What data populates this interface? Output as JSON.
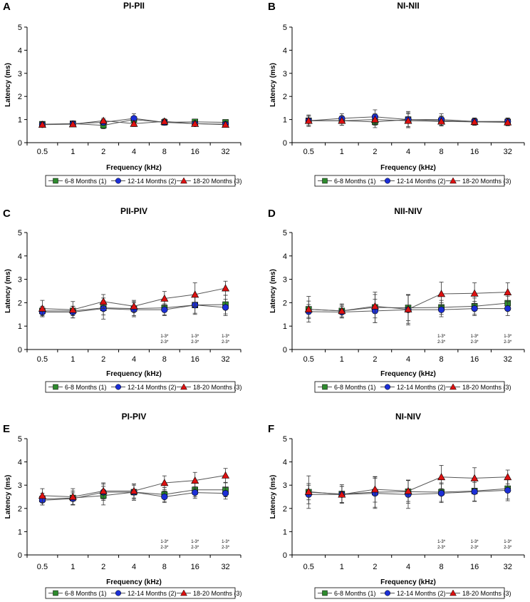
{
  "figure": {
    "legend_labels": [
      "6-8 Months (1)",
      "12-14 Months (2)",
      "18-20 Months (3)"
    ],
    "colors": {
      "group1": "#2e8b2e",
      "group2": "#1c2fd6",
      "group3": "#dd1111",
      "axis": "#000000",
      "line": "#555555"
    }
  },
  "chart_data": [
    {
      "type": "line",
      "panel_letter": "A",
      "title": "PI-PII",
      "xlabel": "Frequency (kHz)",
      "ylabel": "Latency (ms)",
      "categories": [
        "0.5",
        "1",
        "2",
        "4",
        "8",
        "16",
        "32"
      ],
      "ylim": [
        0,
        5
      ],
      "yticks": [
        "0",
        "1",
        "2",
        "3",
        "4",
        "5"
      ],
      "series": [
        {
          "name": "6-8 Months (1)",
          "values": [
            0.8,
            0.82,
            0.75,
            1.0,
            0.88,
            0.9,
            0.88
          ],
          "errors": [
            0.08,
            0.1,
            0.15,
            0.12,
            0.1,
            0.08,
            0.08
          ]
        },
        {
          "name": "12-14 Months (2)",
          "values": [
            0.78,
            0.82,
            0.88,
            1.05,
            0.88,
            0.82,
            0.8
          ],
          "errors": [
            0.08,
            0.1,
            0.12,
            0.2,
            0.1,
            0.08,
            0.08
          ]
        },
        {
          "name": "18-20 Months (3)",
          "values": [
            0.78,
            0.8,
            0.95,
            0.82,
            0.92,
            0.82,
            0.78
          ],
          "errors": [
            0.08,
            0.1,
            0.1,
            0.12,
            0.12,
            0.1,
            0.1
          ]
        }
      ],
      "annotations": []
    },
    {
      "type": "line",
      "panel_letter": "B",
      "title": "NI-NII",
      "xlabel": "Frequency (kHz)",
      "ylabel": "Latency (ms)",
      "categories": [
        "0.5",
        "1",
        "2",
        "4",
        "8",
        "16",
        "32"
      ],
      "ylim": [
        0,
        5
      ],
      "yticks": [
        "0",
        "1",
        "2",
        "3",
        "4",
        "5"
      ],
      "series": [
        {
          "name": "6-8 Months (1)",
          "values": [
            0.95,
            0.95,
            0.9,
            1.0,
            0.95,
            0.9,
            0.9
          ],
          "errors": [
            0.25,
            0.2,
            0.25,
            0.3,
            0.2,
            0.15,
            0.15
          ]
        },
        {
          "name": "12-14 Months (2)",
          "values": [
            0.95,
            1.05,
            1.12,
            1.0,
            1.0,
            0.92,
            0.92
          ],
          "errors": [
            0.2,
            0.2,
            0.3,
            0.35,
            0.25,
            0.15,
            0.15
          ]
        },
        {
          "name": "18-20 Months (3)",
          "values": [
            0.95,
            0.95,
            1.0,
            0.95,
            0.92,
            0.9,
            0.88
          ],
          "errors": [
            0.2,
            0.2,
            0.25,
            0.3,
            0.2,
            0.15,
            0.15
          ]
        }
      ],
      "annotations": []
    },
    {
      "type": "line",
      "panel_letter": "C",
      "title": "PII-PIV",
      "xlabel": "Frequency (kHz)",
      "ylabel": "Latency (ms)",
      "categories": [
        "0.5",
        "1",
        "2",
        "4",
        "8",
        "16",
        "32"
      ],
      "ylim": [
        0,
        5
      ],
      "yticks": [
        "0",
        "1",
        "2",
        "3",
        "4",
        "5"
      ],
      "series": [
        {
          "name": "6-8 Months (1)",
          "values": [
            1.65,
            1.65,
            1.78,
            1.75,
            1.78,
            1.9,
            1.92
          ],
          "errors": [
            0.2,
            0.2,
            0.3,
            0.3,
            0.3,
            0.35,
            0.4
          ]
        },
        {
          "name": "12-14 Months (2)",
          "values": [
            1.6,
            1.6,
            1.75,
            1.7,
            1.7,
            1.9,
            1.8
          ],
          "errors": [
            0.2,
            0.25,
            0.45,
            0.3,
            0.25,
            0.4,
            0.35
          ]
        },
        {
          "name": "18-20 Months (3)",
          "values": [
            1.75,
            1.7,
            2.05,
            1.85,
            2.18,
            2.35,
            2.62
          ],
          "errors": [
            0.35,
            0.35,
            0.3,
            0.25,
            0.3,
            0.5,
            0.3
          ]
        }
      ],
      "annotations": [
        {
          "category": "8",
          "lines": [
            "1-3*",
            "2-3*"
          ]
        },
        {
          "category": "16",
          "lines": [
            "1-3*",
            "2-3*"
          ]
        },
        {
          "category": "32",
          "lines": [
            "1-3*",
            "2-3*"
          ]
        }
      ]
    },
    {
      "type": "line",
      "panel_letter": "D",
      "title": "NII-NIV",
      "xlabel": "Frequency (kHz)",
      "ylabel": "Latency (ms)",
      "categories": [
        "0.5",
        "1",
        "2",
        "4",
        "8",
        "16",
        "32"
      ],
      "ylim": [
        0,
        5
      ],
      "yticks": [
        "0",
        "1",
        "2",
        "3",
        "4",
        "5"
      ],
      "series": [
        {
          "name": "6-8 Months (1)",
          "values": [
            1.72,
            1.65,
            1.8,
            1.78,
            1.8,
            1.85,
            1.98
          ],
          "errors": [
            0.55,
            0.25,
            0.65,
            0.55,
            0.3,
            0.35,
            0.3
          ]
        },
        {
          "name": "12-14 Months (2)",
          "values": [
            1.62,
            1.6,
            1.65,
            1.7,
            1.7,
            1.75,
            1.75
          ],
          "errors": [
            0.3,
            0.25,
            0.5,
            0.65,
            0.3,
            0.3,
            0.3
          ]
        },
        {
          "name": "18-20 Months (3)",
          "values": [
            1.72,
            1.65,
            1.85,
            1.72,
            2.38,
            2.4,
            2.45
          ],
          "errors": [
            0.35,
            0.3,
            0.5,
            0.6,
            0.5,
            0.45,
            0.4
          ]
        }
      ],
      "annotations": [
        {
          "category": "8",
          "lines": [
            "1-3*",
            "2-3*"
          ]
        },
        {
          "category": "16",
          "lines": [
            "1-3*",
            "2-3*"
          ]
        },
        {
          "category": "32",
          "lines": [
            "1-3*",
            "2-3*"
          ]
        }
      ]
    },
    {
      "type": "line",
      "panel_letter": "E",
      "title": "PI-PIV",
      "xlabel": "Frequency (kHz)",
      "ylabel": "Latency (ms)",
      "categories": [
        "0.5",
        "1",
        "2",
        "4",
        "8",
        "16",
        "32"
      ],
      "ylim": [
        0,
        5
      ],
      "yticks": [
        "0",
        "1",
        "2",
        "3",
        "4",
        "5"
      ],
      "series": [
        {
          "name": "6-8 Months (1)",
          "values": [
            2.4,
            2.45,
            2.55,
            2.7,
            2.6,
            2.8,
            2.8
          ],
          "errors": [
            0.25,
            0.3,
            0.4,
            0.35,
            0.3,
            0.3,
            0.3
          ]
        },
        {
          "name": "12-14 Months (2)",
          "values": [
            2.35,
            2.42,
            2.7,
            2.7,
            2.5,
            2.68,
            2.65
          ],
          "errors": [
            0.2,
            0.25,
            0.35,
            0.3,
            0.25,
            0.25,
            0.25
          ]
        },
        {
          "name": "18-20 Months (3)",
          "values": [
            2.55,
            2.5,
            2.75,
            2.75,
            3.1,
            3.2,
            3.42
          ],
          "errors": [
            0.3,
            0.35,
            0.35,
            0.3,
            0.3,
            0.35,
            0.3
          ]
        }
      ],
      "annotations": [
        {
          "category": "8",
          "lines": [
            "1-3*",
            "2-3*"
          ]
        },
        {
          "category": "16",
          "lines": [
            "1-3*",
            "2-3*"
          ]
        },
        {
          "category": "32",
          "lines": [
            "1-3*",
            "2-3*"
          ]
        }
      ]
    },
    {
      "type": "line",
      "panel_letter": "F",
      "title": "NI-NIV",
      "xlabel": "Frequency (kHz)",
      "ylabel": "Latency (ms)",
      "categories": [
        "0.5",
        "1",
        "2",
        "4",
        "8",
        "16",
        "32"
      ],
      "ylim": [
        0,
        5
      ],
      "yticks": [
        "0",
        "1",
        "2",
        "3",
        "4",
        "5"
      ],
      "series": [
        {
          "name": "6-8 Months (1)",
          "values": [
            2.7,
            2.62,
            2.7,
            2.72,
            2.7,
            2.75,
            2.85
          ],
          "errors": [
            0.7,
            0.4,
            0.65,
            0.5,
            0.4,
            0.45,
            0.45
          ]
        },
        {
          "name": "12-14 Months (2)",
          "values": [
            2.6,
            2.6,
            2.65,
            2.6,
            2.65,
            2.72,
            2.78
          ],
          "errors": [
            0.4,
            0.35,
            0.65,
            0.6,
            0.4,
            0.4,
            0.45
          ]
        },
        {
          "name": "18-20 Months (3)",
          "values": [
            2.72,
            2.6,
            2.82,
            2.75,
            3.35,
            3.3,
            3.35
          ],
          "errors": [
            0.35,
            0.35,
            0.55,
            0.45,
            0.5,
            0.45,
            0.3
          ]
        }
      ],
      "annotations": [
        {
          "category": "8",
          "lines": [
            "1-3*",
            "2-3*"
          ]
        },
        {
          "category": "16",
          "lines": [
            "1-3*",
            "2-3*"
          ]
        },
        {
          "category": "32",
          "lines": [
            "1-3*",
            "2-3*"
          ]
        }
      ]
    }
  ]
}
